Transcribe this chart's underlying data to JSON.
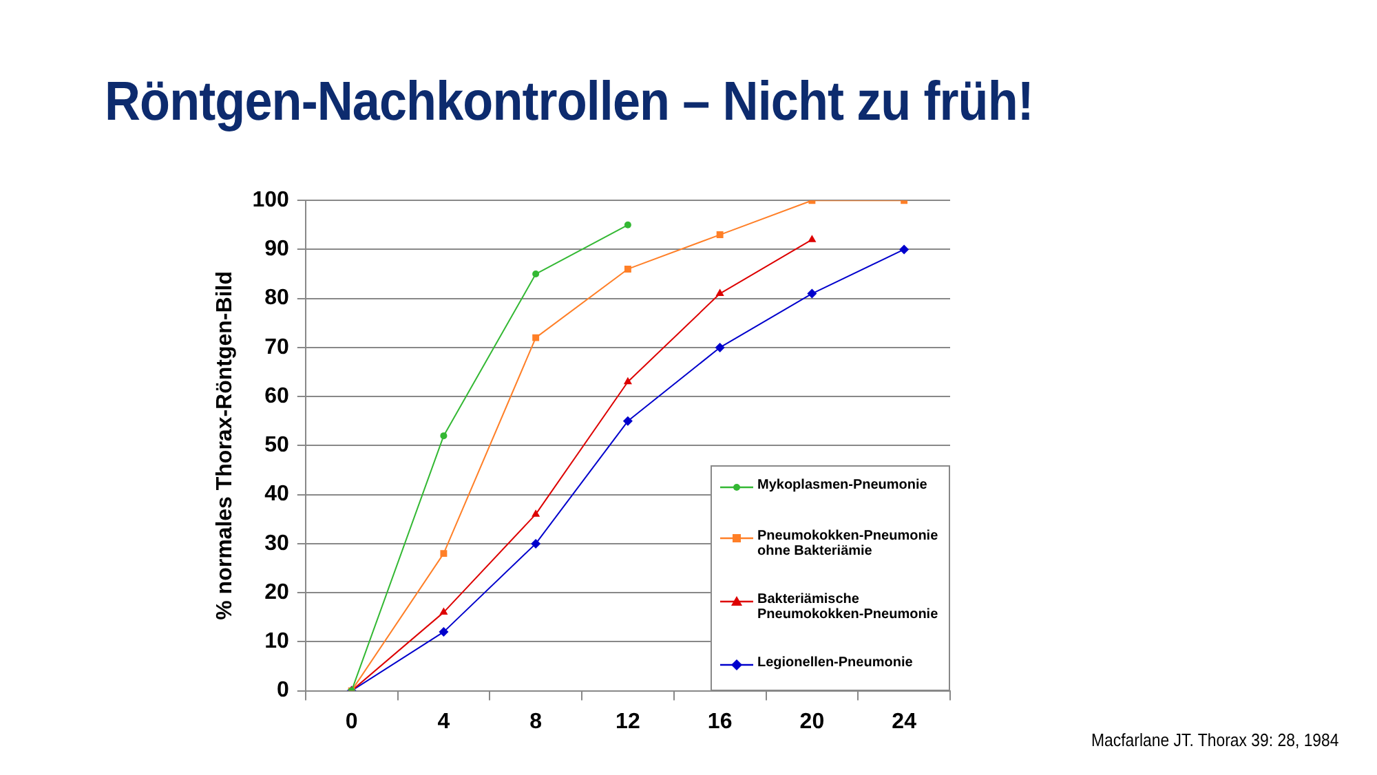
{
  "chart_data": {
    "type": "line",
    "title": "Röntgen-Nachkontrollen – Nicht zu früh!",
    "ylabel": "% normales Thorax-Röntgen-Bild",
    "categories": [
      "0",
      "4",
      "8",
      "12",
      "16",
      "20",
      "24"
    ],
    "series": [
      {
        "name": "Mykoplasmen-Pneumonie",
        "color": "#33b833",
        "marker": "circle",
        "values": [
          0,
          52,
          85,
          95,
          null,
          null,
          null
        ]
      },
      {
        "name": "Pneumokokken-Pneumonie ohne Bakteriämie",
        "color": "#ff7f27",
        "marker": "square",
        "values": [
          0,
          28,
          72,
          86,
          93,
          100,
          100
        ]
      },
      {
        "name": "Bakteriämische Pneumokokken-Pneumonie",
        "color": "#dd0000",
        "marker": "triangle",
        "values": [
          0,
          16,
          36,
          63,
          81,
          92,
          null
        ]
      },
      {
        "name": "Legionellen-Pneumonie",
        "color": "#0000cc",
        "marker": "diamond",
        "values": [
          0,
          12,
          30,
          55,
          70,
          81,
          90
        ]
      }
    ],
    "ylim": [
      0,
      100
    ],
    "yticks": [
      0,
      10,
      20,
      30,
      40,
      50,
      60,
      70,
      80,
      90,
      100
    ],
    "grid": "y",
    "legend": "bottom right",
    "line_style": "solid",
    "annotations": [
      "Macfarlane JT. Thorax 39: 28, 1984"
    ]
  }
}
